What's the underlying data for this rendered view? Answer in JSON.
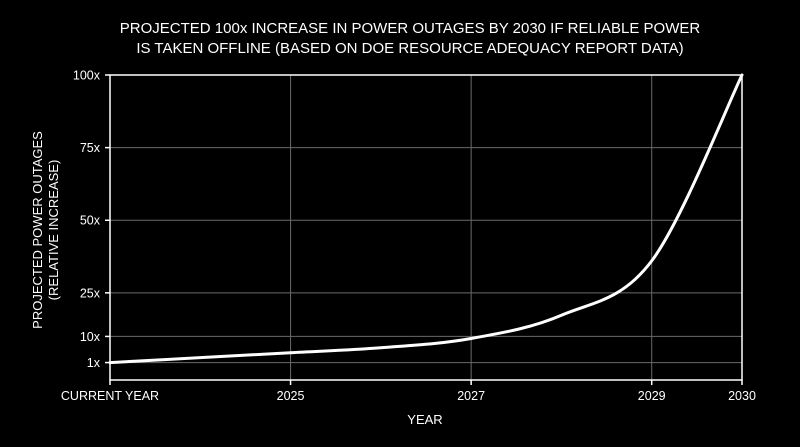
{
  "chart_data": {
    "type": "line",
    "title_lines": [
      "PROJECTED 100x INCREASE IN POWER OUTAGES BY 2030 IF RELIABLE POWER",
      "IS TAKEN OFFLINE (BASED ON DOE RESOURCE ADEQUACY REPORT DATA)"
    ],
    "xlabel": "YEAR",
    "ylabel_lines": [
      "PROJECTED POWER OUTAGES",
      "(RELATIVE INCREASE)"
    ],
    "x_ticks": [
      {
        "label": "CURRENT YEAR",
        "year": 2023
      },
      {
        "label": "2025",
        "year": 2025
      },
      {
        "label": "2027",
        "year": 2027
      },
      {
        "label": "2029",
        "year": 2029
      },
      {
        "label": "2030",
        "year": 2030
      }
    ],
    "y_ticks": [
      {
        "label": "1x",
        "value": 1
      },
      {
        "label": "10x",
        "value": 10
      },
      {
        "label": "25x",
        "value": 25
      },
      {
        "label": "50x",
        "value": 50
      },
      {
        "label": "75x",
        "value": 75
      },
      {
        "label": "100x",
        "value": 100
      }
    ],
    "xlim": [
      2023,
      2030
    ],
    "ylim": [
      -5,
      100
    ],
    "grid": true,
    "series": [
      {
        "x": [
          2023,
          2024,
          2025,
          2026,
          2027,
          2028,
          2029,
          2030
        ],
        "y": [
          1,
          2.7,
          4.4,
          6.1,
          9.3,
          17.3,
          36,
          100
        ]
      }
    ],
    "colors": {
      "background": "#000000",
      "line": "#ffffff",
      "grid": "#6a6a6a",
      "text": "#ffffff"
    }
  }
}
